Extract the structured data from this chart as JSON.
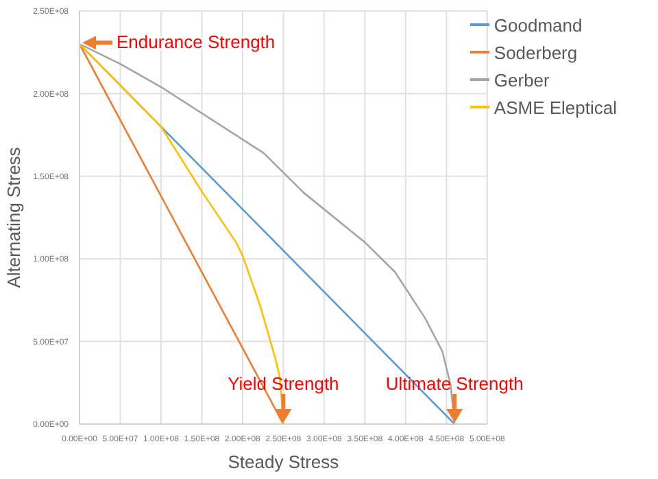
{
  "chart_data": {
    "type": "line",
    "xlabel": "Steady Stress",
    "ylabel": "Alternating Stress",
    "xlim": [
      0,
      500000000
    ],
    "ylim": [
      0,
      250000000
    ],
    "xticks": [
      {
        "value": 0,
        "label": "0.00E+00"
      },
      {
        "value": 50000000,
        "label": "5.00E+07"
      },
      {
        "value": 100000000,
        "label": "1.00E+08"
      },
      {
        "value": 150000000,
        "label": "1.50E+08"
      },
      {
        "value": 200000000,
        "label": "2.00E+08"
      },
      {
        "value": 250000000,
        "label": "2.50E+08"
      },
      {
        "value": 300000000,
        "label": "3.00E+08"
      },
      {
        "value": 350000000,
        "label": "3.50E+08"
      },
      {
        "value": 400000000,
        "label": "4.00E+08"
      },
      {
        "value": 450000000,
        "label": "4.50E+08"
      },
      {
        "value": 500000000,
        "label": "5.00E+08"
      }
    ],
    "yticks": [
      {
        "value": 0,
        "label": "0.00E+00"
      },
      {
        "value": 50000000,
        "label": "5.00E+07"
      },
      {
        "value": 100000000,
        "label": "1.00E+08"
      },
      {
        "value": 150000000,
        "label": "1.50E+08"
      },
      {
        "value": 200000000,
        "label": "2.00E+08"
      },
      {
        "value": 250000000,
        "label": "2.50E+08"
      }
    ],
    "grid": true,
    "legend": "top right",
    "marker": "none",
    "series": [
      {
        "name": "Goodmand",
        "color": "#5b9bd5",
        "x": [
          0,
          460000000
        ],
        "values": [
          230000000,
          0
        ]
      },
      {
        "name": "Soderberg",
        "color": "#ed7d31",
        "x": [
          0,
          250000000
        ],
        "values": [
          230000000,
          0
        ]
      },
      {
        "name": "Gerber",
        "color": "#a5a5a5",
        "x": [
          0,
          50000000,
          100000000,
          226000000,
          275000000,
          350000000,
          387000000,
          424000000,
          445000000,
          455000000,
          460000000
        ],
        "values": [
          230000000,
          218000000,
          204000000,
          164000000,
          140000000,
          110000000,
          92000000,
          64000000,
          44000000,
          24000000,
          0
        ]
      },
      {
        "name": "ASME Eleptical",
        "color": "#ffc000",
        "x": [
          0,
          50000000,
          100000000,
          151000000,
          192000000,
          200000000,
          222000000,
          240000000,
          245000000,
          248000000,
          250000000
        ],
        "values": [
          230000000,
          205000000,
          180000000,
          140000000,
          110000000,
          102000000,
          71000000,
          40000000,
          30000000,
          15000000,
          0
        ]
      }
    ],
    "annotations": [
      {
        "text": "Endurance Strength",
        "x": 0,
        "y": 230000000
      },
      {
        "text": "Yield Strength",
        "x": 250000000,
        "y": 0
      },
      {
        "text": "Ultimate Strength",
        "x": 460000000,
        "y": 0
      }
    ]
  }
}
